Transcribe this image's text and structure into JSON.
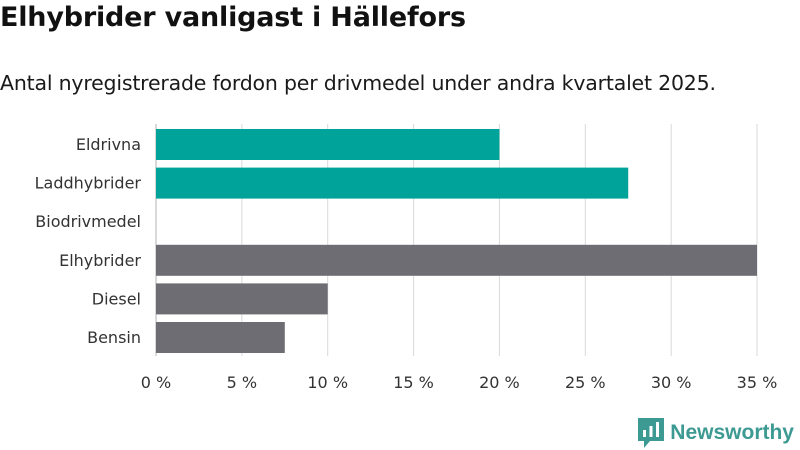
{
  "title": "Elhybrider vanligast i Hällefors",
  "subtitle": "Antal nyregistrerade fordon per drivmedel under andra kvartalet 2025.",
  "brand": {
    "name": "Newsworthy",
    "icon": "newsworthy-logo-icon"
  },
  "colors": {
    "highlight": "#00a39a",
    "other": "#6e6d73",
    "grid": "#d9d9d9"
  },
  "chart_data": {
    "type": "bar",
    "orientation": "horizontal",
    "categories": [
      "Eldrivna",
      "Laddhybrider",
      "Biodrivmedel",
      "Elhybrider",
      "Diesel",
      "Bensin"
    ],
    "values": [
      20,
      27.5,
      0,
      35,
      10,
      7.5
    ],
    "bar_colors": [
      "#00a39a",
      "#00a39a",
      "#00a39a",
      "#6e6d73",
      "#6e6d73",
      "#6e6d73"
    ],
    "xlim": [
      0,
      35
    ],
    "xticks": [
      0,
      5,
      10,
      15,
      20,
      25,
      30,
      35
    ],
    "xtick_labels": [
      "0 %",
      "5 %",
      "10 %",
      "15 %",
      "20 %",
      "25 %",
      "30 %",
      "35 %"
    ],
    "grid": true,
    "xlabel": "",
    "ylabel": ""
  }
}
